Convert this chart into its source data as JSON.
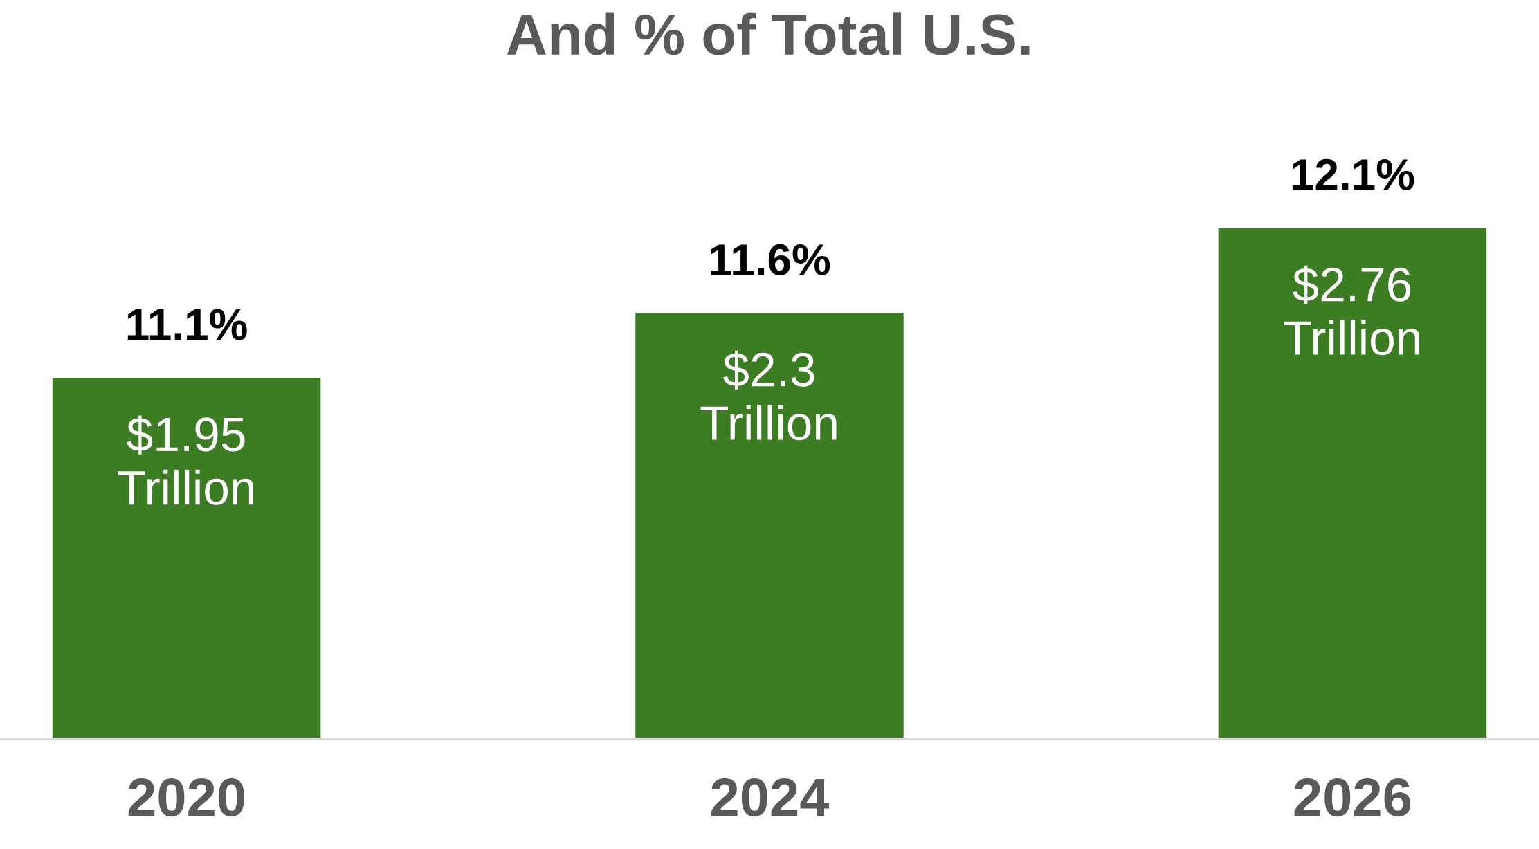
{
  "chart_data": {
    "type": "bar",
    "title": "And % of Total U.S.",
    "categories": [
      "2020",
      "2024",
      "2026"
    ],
    "series": [
      {
        "color": "#3c7d23",
        "values": [
          1.95,
          2.3,
          2.76
        ],
        "value_labels": [
          "$1.95\nTrillion",
          "$2.3\nTrillion",
          "$2.76\nTrillion"
        ]
      }
    ],
    "annotations": [
      {
        "text": "11.1%",
        "x": "2020",
        "y": 1.95
      },
      {
        "text": "11.6%",
        "x": "2024",
        "y": 2.3
      },
      {
        "text": "12.1%",
        "x": "2026",
        "y": 2.76
      }
    ],
    "grid": false
  }
}
